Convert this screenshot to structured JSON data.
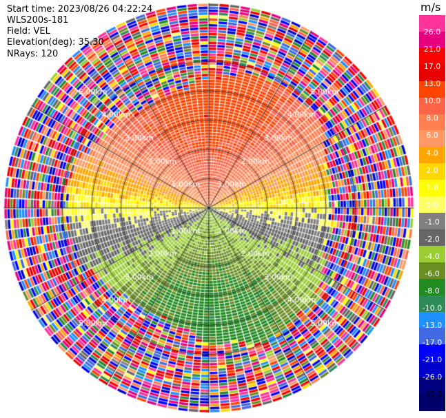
{
  "info": {
    "start_time": "Start time: 2023/08/26 04:22:24",
    "station": "WLS200s-181",
    "field": "Field: VEL",
    "elevation": "Elevation(deg): 35.30",
    "nrays": "NRays: 120"
  },
  "colorbar": {
    "unit": "m/s",
    "ticks": [
      "26.0",
      "21.0",
      "17.0",
      "13.0",
      "10.0",
      "8.0",
      "6.0",
      "4.0",
      "2.0",
      "1.0",
      "0.0",
      "-1.0",
      "-2.0",
      "-4.0",
      "-6.0",
      "-8.0",
      "-10.0",
      "-13.0",
      "-17.0",
      "-21.0",
      "-26.0",
      "-30.0"
    ],
    "segment_colors": [
      "#ff3399",
      "#e6007e",
      "#ff0000",
      "#e60000",
      "#ff4500",
      "#ff6347",
      "#ff7f50",
      "#ff9966",
      "#ffa500",
      "#ffd700",
      "#ffff00",
      "#ffff66",
      "#808080",
      "#666666",
      "#9acd32",
      "#6b8e23",
      "#228b22",
      "#2e8b57",
      "#1e90ff",
      "#4169e1",
      "#0000ff",
      "#0000cd",
      "#000080",
      "#00006b"
    ]
  },
  "chart_data": {
    "type": "ppi",
    "title": "",
    "field": "VEL",
    "unit": "m/s",
    "nrays": 120,
    "elevation_deg": 35.3,
    "range_rings_km": [
      1.0,
      2.0,
      3.0,
      4.0,
      5.0
    ],
    "range_ring_labels": [
      "1.00km",
      "2.00km",
      "3.00km",
      "4.00km",
      "5.00km"
    ],
    "max_range_km": 7.0,
    "color_scale_ms": [
      30,
      26,
      21,
      17,
      13,
      10,
      8,
      6,
      4,
      2,
      1,
      0,
      -1,
      -2,
      -4,
      -6,
      -8,
      -10,
      -13,
      -17,
      -21,
      -26,
      -30
    ],
    "velocity_pattern": {
      "description_values": "north ~ +8 to +13 m/s, east/west ~ 0 m/s, south ~ -8 to -10 m/s, noisy beyond ~4.3 km",
      "north_peak_ms": 12,
      "south_peak_ms": -9,
      "valid_range_km": 4.3
    }
  }
}
